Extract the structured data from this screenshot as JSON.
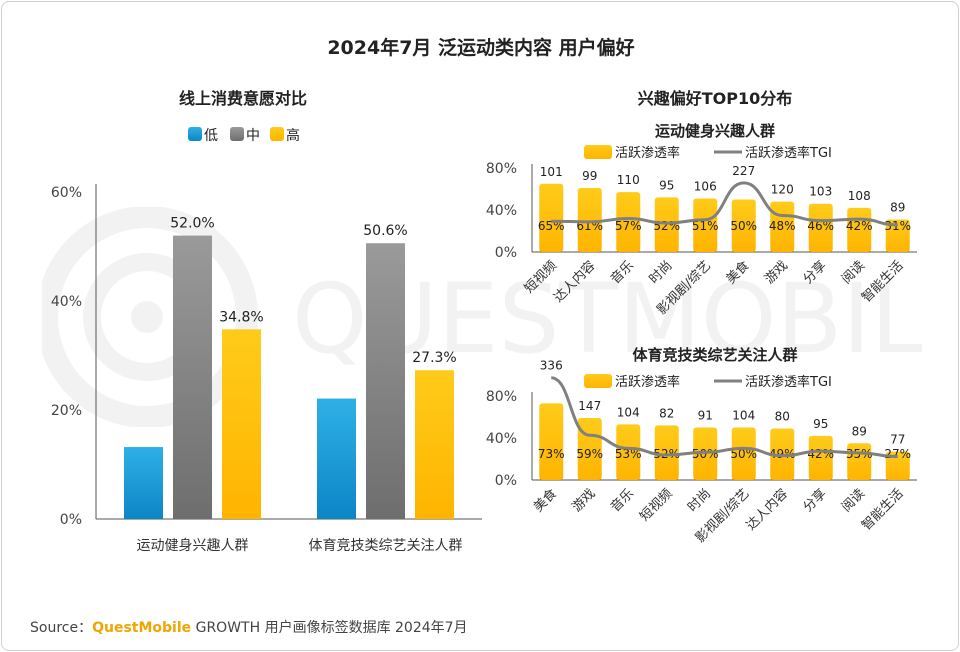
{
  "page": {
    "title": "2024年7月 泛运动类内容 用户偏好",
    "watermark": "QUESTMOBILE",
    "source_prefix": "Source：",
    "source_brand": "QuestMobile",
    "source_rest": " GROWTH 用户画像标签数据库 2024年7月"
  },
  "colors": {
    "low": "#1e9fd9",
    "mid": "#7f7f7f",
    "high": "#ffc000",
    "line": "#808080"
  },
  "chart_data": [
    {
      "id": "consumption",
      "type": "bar",
      "title": "线上消费意愿对比",
      "legend": [
        "低",
        "中",
        "高"
      ],
      "categories": [
        "运动健身兴趣人群",
        "体育竞技类综艺关注人群"
      ],
      "series": [
        {
          "name": "低",
          "values": [
            13.2,
            22.1
          ],
          "labels": [
            "",
            ""
          ]
        },
        {
          "name": "中",
          "values": [
            52.0,
            50.6
          ],
          "labels": [
            "52.0%",
            "50.6%"
          ]
        },
        {
          "name": "高",
          "values": [
            34.8,
            27.3
          ],
          "labels": [
            "34.8%",
            "27.3%"
          ]
        }
      ],
      "ylim": [
        0,
        60
      ],
      "yticks": [
        "0%",
        "20%",
        "40%",
        "60%"
      ],
      "grid": false
    },
    {
      "id": "fitness",
      "type": "bar+line",
      "section_title": "兴趣偏好TOP10分布",
      "title": "运动健身兴趣人群",
      "legend": [
        "活跃渗透率",
        "活跃渗透率TGI"
      ],
      "categories": [
        "短视频",
        "达人内容",
        "音乐",
        "时尚",
        "影视剧/综艺",
        "美食",
        "游戏",
        "分享",
        "阅读",
        "智能生活"
      ],
      "bar_values": [
        65,
        61,
        57,
        52,
        51,
        50,
        48,
        46,
        42,
        31
      ],
      "bar_labels": [
        "65%",
        "61%",
        "57%",
        "52%",
        "51%",
        "50%",
        "48%",
        "46%",
        "42%",
        "31%"
      ],
      "tgi_values": [
        101,
        99,
        110,
        95,
        106,
        227,
        120,
        103,
        108,
        89
      ],
      "ylim": [
        0,
        80
      ],
      "yticks": [
        "0%",
        "40%",
        "80%"
      ]
    },
    {
      "id": "sports_show",
      "type": "bar+line",
      "title": "体育竞技类综艺关注人群",
      "legend": [
        "活跃渗透率",
        "活跃渗透率TGI"
      ],
      "categories": [
        "美食",
        "游戏",
        "音乐",
        "短视频",
        "时尚",
        "影视剧/综艺",
        "达人内容",
        "分享",
        "阅读",
        "智能生活"
      ],
      "bar_values": [
        73,
        59,
        53,
        52,
        50,
        50,
        49,
        42,
        35,
        27
      ],
      "bar_labels": [
        "73%",
        "59%",
        "53%",
        "52%",
        "50%",
        "50%",
        "49%",
        "42%",
        "35%",
        "27%"
      ],
      "tgi_values": [
        336,
        147,
        104,
        82,
        91,
        104,
        80,
        95,
        89,
        77
      ],
      "ylim": [
        0,
        80
      ],
      "yticks": [
        "0%",
        "40%",
        "80%"
      ]
    }
  ]
}
